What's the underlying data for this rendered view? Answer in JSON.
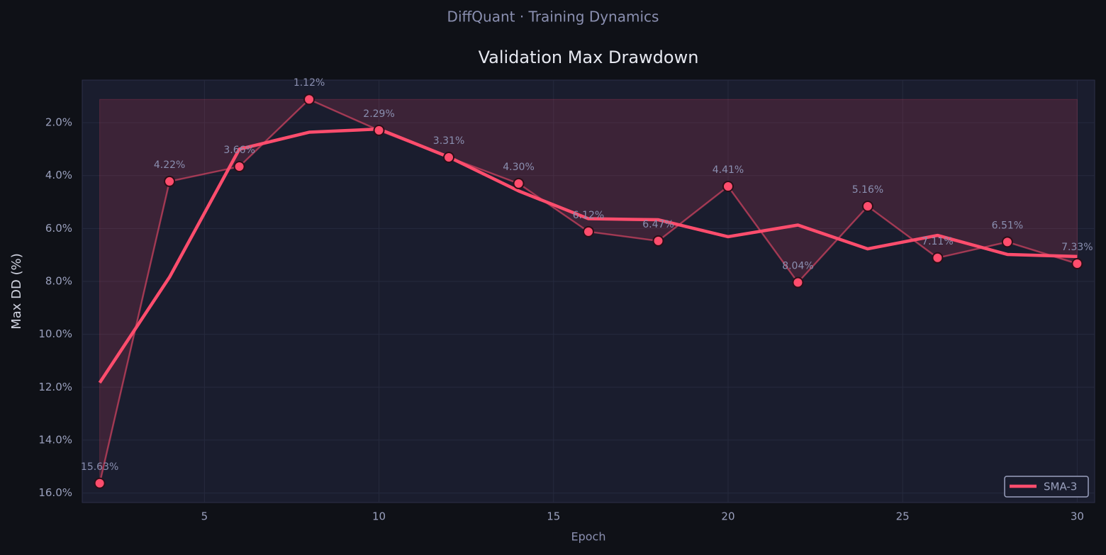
{
  "chart_data": {
    "type": "line",
    "suptitle": "DiffQuant  ·  Training Dynamics",
    "title": "Validation Max Drawdown",
    "xlabel": "Epoch",
    "ylabel": "Max DD (%)",
    "x": [
      2,
      4,
      6,
      8,
      10,
      12,
      14,
      16,
      18,
      20,
      22,
      24,
      26,
      28,
      30
    ],
    "series": [
      {
        "color": "#ff4d6d",
        "values": [
          15.63,
          4.22,
          3.66,
          1.12,
          2.29,
          3.31,
          4.3,
          6.12,
          6.47,
          4.41,
          8.04,
          5.16,
          7.11,
          6.51,
          7.33
        ],
        "value_labels": [
          "15.63%",
          "4.22%",
          "3.66%",
          "1.12%",
          "2.29%",
          "3.31%",
          "4.30%",
          "6.12%",
          "6.47%",
          "4.41%",
          "8.04%",
          "5.16%",
          "7.11%",
          "6.51%",
          "7.33%"
        ]
      },
      {
        "name": "SMA-3",
        "color": "#ff4d6d",
        "values": [
          11.83,
          7.84,
          3.0,
          2.36,
          2.24,
          3.3,
          4.58,
          5.63,
          5.67,
          6.31,
          5.87,
          6.77,
          6.26,
          6.98,
          7.06
        ]
      }
    ],
    "xlim": [
      1.5,
      30.5
    ],
    "xticks": [
      5,
      10,
      15,
      20,
      25,
      30
    ],
    "ylim": [
      0.39,
      16.36
    ],
    "y_inverted": true,
    "yticks": [
      {
        "value": 2,
        "label": "2.0%"
      },
      {
        "value": 4,
        "label": "4.0%"
      },
      {
        "value": 6,
        "label": "6.0%"
      },
      {
        "value": 8,
        "label": "8.0%"
      },
      {
        "value": 10,
        "label": "10.0%"
      },
      {
        "value": 12,
        "label": "12.0%"
      },
      {
        "value": 14,
        "label": "14.0%"
      },
      {
        "value": 16,
        "label": "16.0%"
      }
    ],
    "grid": true,
    "legend": "lower right"
  }
}
